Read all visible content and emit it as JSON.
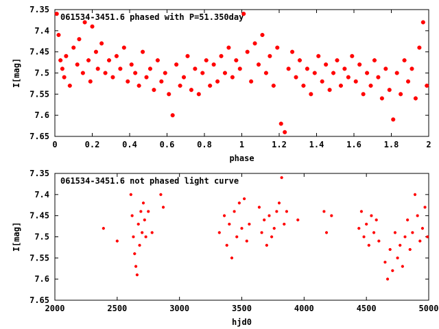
{
  "chart_data": [
    {
      "type": "scatter",
      "title": "061534-3451.6 phased with P=51.350day",
      "xlabel": "phase",
      "ylabel": "I[mag]",
      "xlim": [
        0,
        2
      ],
      "ylim": [
        7.65,
        7.35
      ],
      "y_inverted": true,
      "xticks": [
        "0",
        "0.2",
        "0.4",
        "0.6",
        "0.8",
        "1",
        "1.2",
        "1.4",
        "1.6",
        "1.8",
        "2"
      ],
      "yticks": [
        "7.35",
        "7.4",
        "7.45",
        "7.5",
        "7.55",
        "7.6",
        "7.65"
      ],
      "marker_color": "#ff0000",
      "series": [
        {
          "values": [
            [
              0.01,
              7.36
            ],
            [
              0.02,
              7.41
            ],
            [
              0.03,
              7.47
            ],
            [
              0.04,
              7.49
            ],
            [
              0.05,
              7.51
            ],
            [
              0.06,
              7.46
            ],
            [
              0.08,
              7.53
            ],
            [
              0.1,
              7.44
            ],
            [
              0.12,
              7.48
            ],
            [
              0.13,
              7.42
            ],
            [
              0.15,
              7.5
            ],
            [
              0.16,
              7.38
            ],
            [
              0.18,
              7.47
            ],
            [
              0.19,
              7.52
            ],
            [
              0.2,
              7.39
            ],
            [
              0.22,
              7.45
            ],
            [
              0.23,
              7.49
            ],
            [
              0.25,
              7.43
            ],
            [
              0.27,
              7.5
            ],
            [
              0.29,
              7.47
            ],
            [
              0.31,
              7.51
            ],
            [
              0.33,
              7.46
            ],
            [
              0.35,
              7.49
            ],
            [
              0.37,
              7.44
            ],
            [
              0.39,
              7.52
            ],
            [
              0.41,
              7.48
            ],
            [
              0.43,
              7.5
            ],
            [
              0.45,
              7.53
            ],
            [
              0.47,
              7.45
            ],
            [
              0.49,
              7.51
            ],
            [
              0.51,
              7.49
            ],
            [
              0.53,
              7.54
            ],
            [
              0.55,
              7.47
            ],
            [
              0.57,
              7.52
            ],
            [
              0.59,
              7.5
            ],
            [
              0.61,
              7.55
            ],
            [
              0.63,
              7.6
            ],
            [
              0.65,
              7.48
            ],
            [
              0.67,
              7.53
            ],
            [
              0.69,
              7.51
            ],
            [
              0.71,
              7.46
            ],
            [
              0.73,
              7.54
            ],
            [
              0.75,
              7.49
            ],
            [
              0.77,
              7.55
            ],
            [
              0.79,
              7.5
            ],
            [
              0.81,
              7.47
            ],
            [
              0.83,
              7.53
            ],
            [
              0.85,
              7.48
            ],
            [
              0.87,
              7.52
            ],
            [
              0.89,
              7.46
            ],
            [
              0.91,
              7.5
            ],
            [
              0.93,
              7.44
            ],
            [
              0.95,
              7.51
            ],
            [
              0.97,
              7.47
            ],
            [
              0.99,
              7.49
            ],
            [
              1.01,
              7.36
            ],
            [
              1.03,
              7.45
            ],
            [
              1.05,
              7.52
            ],
            [
              1.07,
              7.43
            ],
            [
              1.09,
              7.48
            ],
            [
              1.11,
              7.41
            ],
            [
              1.13,
              7.5
            ],
            [
              1.15,
              7.46
            ],
            [
              1.17,
              7.53
            ],
            [
              1.19,
              7.44
            ],
            [
              1.21,
              7.62
            ],
            [
              1.23,
              7.64
            ],
            [
              1.25,
              7.49
            ],
            [
              1.27,
              7.45
            ],
            [
              1.29,
              7.51
            ],
            [
              1.31,
              7.47
            ],
            [
              1.33,
              7.53
            ],
            [
              1.35,
              7.49
            ],
            [
              1.37,
              7.55
            ],
            [
              1.39,
              7.5
            ],
            [
              1.41,
              7.46
            ],
            [
              1.43,
              7.52
            ],
            [
              1.45,
              7.48
            ],
            [
              1.47,
              7.54
            ],
            [
              1.49,
              7.5
            ],
            [
              1.51,
              7.47
            ],
            [
              1.53,
              7.53
            ],
            [
              1.55,
              7.49
            ],
            [
              1.57,
              7.51
            ],
            [
              1.59,
              7.46
            ],
            [
              1.61,
              7.52
            ],
            [
              1.63,
              7.48
            ],
            [
              1.65,
              7.55
            ],
            [
              1.67,
              7.5
            ],
            [
              1.69,
              7.53
            ],
            [
              1.71,
              7.47
            ],
            [
              1.73,
              7.51
            ],
            [
              1.75,
              7.56
            ],
            [
              1.77,
              7.49
            ],
            [
              1.79,
              7.54
            ],
            [
              1.81,
              7.61
            ],
            [
              1.83,
              7.5
            ],
            [
              1.85,
              7.55
            ],
            [
              1.87,
              7.47
            ],
            [
              1.89,
              7.52
            ],
            [
              1.91,
              7.49
            ],
            [
              1.93,
              7.56
            ],
            [
              1.95,
              7.44
            ],
            [
              1.97,
              7.38
            ],
            [
              1.99,
              7.53
            ]
          ]
        }
      ]
    },
    {
      "type": "scatter",
      "title": "061534-3451.6 not phased light curve",
      "xlabel": "hjd0",
      "ylabel": "I[mag]",
      "xlim": [
        2000,
        5000
      ],
      "ylim": [
        7.65,
        7.35
      ],
      "y_inverted": true,
      "xticks": [
        "2000",
        "2500",
        "3000",
        "3500",
        "4000",
        "4500",
        "5000"
      ],
      "yticks": [
        "7.35",
        "7.4",
        "7.45",
        "7.5",
        "7.55",
        "7.6",
        "7.65"
      ],
      "marker_color": "#ff0000",
      "series": [
        {
          "values": [
            [
              2390,
              7.48
            ],
            [
              2500,
              7.51
            ],
            [
              2610,
              7.4
            ],
            [
              2620,
              7.45
            ],
            [
              2630,
              7.5
            ],
            [
              2640,
              7.54
            ],
            [
              2650,
              7.57
            ],
            [
              2660,
              7.59
            ],
            [
              2670,
              7.47
            ],
            [
              2680,
              7.52
            ],
            [
              2690,
              7.44
            ],
            [
              2700,
              7.49
            ],
            [
              2710,
              7.42
            ],
            [
              2720,
              7.46
            ],
            [
              2730,
              7.5
            ],
            [
              2750,
              7.44
            ],
            [
              2780,
              7.49
            ],
            [
              2850,
              7.4
            ],
            [
              2870,
              7.43
            ],
            [
              3320,
              7.49
            ],
            [
              3360,
              7.45
            ],
            [
              3380,
              7.52
            ],
            [
              3400,
              7.47
            ],
            [
              3420,
              7.55
            ],
            [
              3440,
              7.44
            ],
            [
              3460,
              7.5
            ],
            [
              3480,
              7.42
            ],
            [
              3500,
              7.48
            ],
            [
              3520,
              7.41
            ],
            [
              3540,
              7.51
            ],
            [
              3560,
              7.47
            ],
            [
              3640,
              7.43
            ],
            [
              3660,
              7.49
            ],
            [
              3680,
              7.46
            ],
            [
              3700,
              7.52
            ],
            [
              3720,
              7.45
            ],
            [
              3740,
              7.5
            ],
            [
              3760,
              7.48
            ],
            [
              3780,
              7.44
            ],
            [
              3800,
              7.42
            ],
            [
              3820,
              7.36
            ],
            [
              3840,
              7.47
            ],
            [
              3860,
              7.44
            ],
            [
              3950,
              7.46
            ],
            [
              4160,
              7.44
            ],
            [
              4180,
              7.49
            ],
            [
              4220,
              7.45
            ],
            [
              4440,
              7.48
            ],
            [
              4460,
              7.44
            ],
            [
              4480,
              7.5
            ],
            [
              4500,
              7.47
            ],
            [
              4520,
              7.52
            ],
            [
              4540,
              7.45
            ],
            [
              4560,
              7.49
            ],
            [
              4580,
              7.46
            ],
            [
              4600,
              7.51
            ],
            [
              4650,
              7.56
            ],
            [
              4670,
              7.6
            ],
            [
              4690,
              7.53
            ],
            [
              4710,
              7.58
            ],
            [
              4730,
              7.49
            ],
            [
              4750,
              7.55
            ],
            [
              4770,
              7.52
            ],
            [
              4790,
              7.57
            ],
            [
              4810,
              7.5
            ],
            [
              4830,
              7.46
            ],
            [
              4850,
              7.53
            ],
            [
              4870,
              7.49
            ],
            [
              4890,
              7.4
            ],
            [
              4910,
              7.45
            ],
            [
              4930,
              7.51
            ],
            [
              4950,
              7.48
            ],
            [
              4970,
              7.43
            ],
            [
              4990,
              7.5
            ]
          ]
        }
      ]
    }
  ]
}
